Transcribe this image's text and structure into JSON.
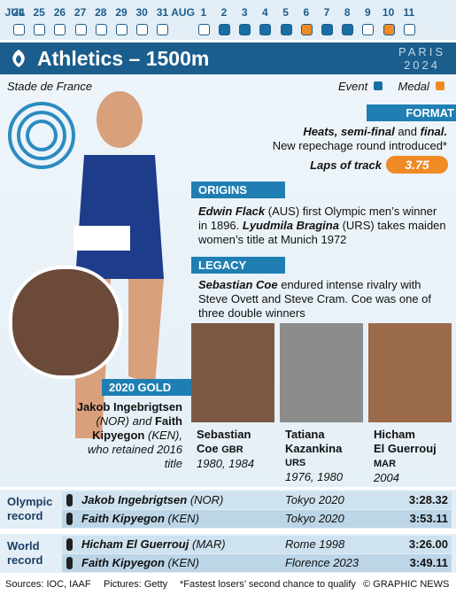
{
  "calendar": {
    "months": [
      "JUL",
      "AUG"
    ],
    "days": [
      {
        "day": "24",
        "month": 0,
        "status": "none"
      },
      {
        "day": "25",
        "month": 0,
        "status": "none"
      },
      {
        "day": "26",
        "month": 0,
        "status": "none"
      },
      {
        "day": "27",
        "month": 0,
        "status": "none"
      },
      {
        "day": "28",
        "month": 0,
        "status": "none"
      },
      {
        "day": "29",
        "month": 0,
        "status": "none"
      },
      {
        "day": "30",
        "month": 0,
        "status": "none"
      },
      {
        "day": "31",
        "month": 0,
        "status": "none"
      },
      {
        "day": "1",
        "month": 1,
        "status": "none"
      },
      {
        "day": "2",
        "month": 1,
        "status": "event"
      },
      {
        "day": "3",
        "month": 1,
        "status": "event"
      },
      {
        "day": "4",
        "month": 1,
        "status": "event"
      },
      {
        "day": "5",
        "month": 1,
        "status": "event"
      },
      {
        "day": "6",
        "month": 1,
        "status": "medal"
      },
      {
        "day": "7",
        "month": 1,
        "status": "event"
      },
      {
        "day": "8",
        "month": 1,
        "status": "event"
      },
      {
        "day": "9",
        "month": 1,
        "status": "none"
      },
      {
        "day": "10",
        "month": 1,
        "status": "medal"
      },
      {
        "day": "11",
        "month": 1,
        "status": "none"
      }
    ],
    "colors": {
      "event": "#1a6ea3",
      "medal": "#f08a24"
    }
  },
  "header": {
    "title": "Athletics – 1500m",
    "games": [
      "PARIS",
      "2024"
    ]
  },
  "venue": "Stade de France",
  "legend": {
    "event": "Event",
    "medal": "Medal"
  },
  "format": {
    "label": "FORMAT",
    "line1": [
      "Heats, semi-final",
      "and",
      "final."
    ],
    "line2": "New repechage round introduced*",
    "laps_label": "Laps of track",
    "laps": "3.75"
  },
  "origins": {
    "label": "ORIGINS",
    "parts": [
      "Edwin Flack",
      "(AUS) first Olympic men’s winner in 1896.",
      "Lyudmila Bragina",
      "(URS) takes maiden women’s title at Munich 1972"
    ]
  },
  "legacy": {
    "label": "LEGACY",
    "parts": [
      "Sebastian Coe",
      "endured intense rivalry with Steve Ovett and Steve Cram. Coe was one of three double winners"
    ]
  },
  "gold2020": {
    "label": "2020 GOLD",
    "parts": [
      "Jakob Ingebrigtsen",
      "(NOR) and",
      "Faith Kipyegon",
      "(KEN), who retained 2016 title"
    ]
  },
  "legends": [
    {
      "name": [
        "Sebastian",
        "Coe"
      ],
      "nation": "GBR",
      "years": "1980, 1984"
    },
    {
      "name": [
        "Tatiana",
        "Kazankina"
      ],
      "nation": "URS",
      "years": "1976, 1980"
    },
    {
      "name": [
        "Hicham",
        "El Guerrouj"
      ],
      "nation": "MAR",
      "years": "2004"
    }
  ],
  "records": [
    {
      "label": [
        "Olympic",
        "record"
      ],
      "rows": [
        {
          "athlete": "Jakob Ingebrigtsen",
          "nation": "(NOR)",
          "venue": "Tokyo 2020",
          "time": "3:28.32"
        },
        {
          "athlete": "Faith Kipyegon",
          "nation": "(KEN)",
          "venue": "Tokyo 2020",
          "time": "3:53.11"
        }
      ]
    },
    {
      "label": [
        "World",
        "record"
      ],
      "rows": [
        {
          "athlete": "Hicham El Guerrouj",
          "nation": "(MAR)",
          "venue": "Rome 1998",
          "time": "3:26.00"
        },
        {
          "athlete": "Faith Kipyegon",
          "nation": "(KEN)",
          "venue": "Florence 2023",
          "time": "3:49.11"
        }
      ]
    }
  ],
  "footer": {
    "sources": "Sources: IOC, IAAF",
    "pictures": "Pictures: Getty",
    "note": "*Fastest losers’ second chance to qualify",
    "credit": "© GRAPHIC NEWS"
  }
}
